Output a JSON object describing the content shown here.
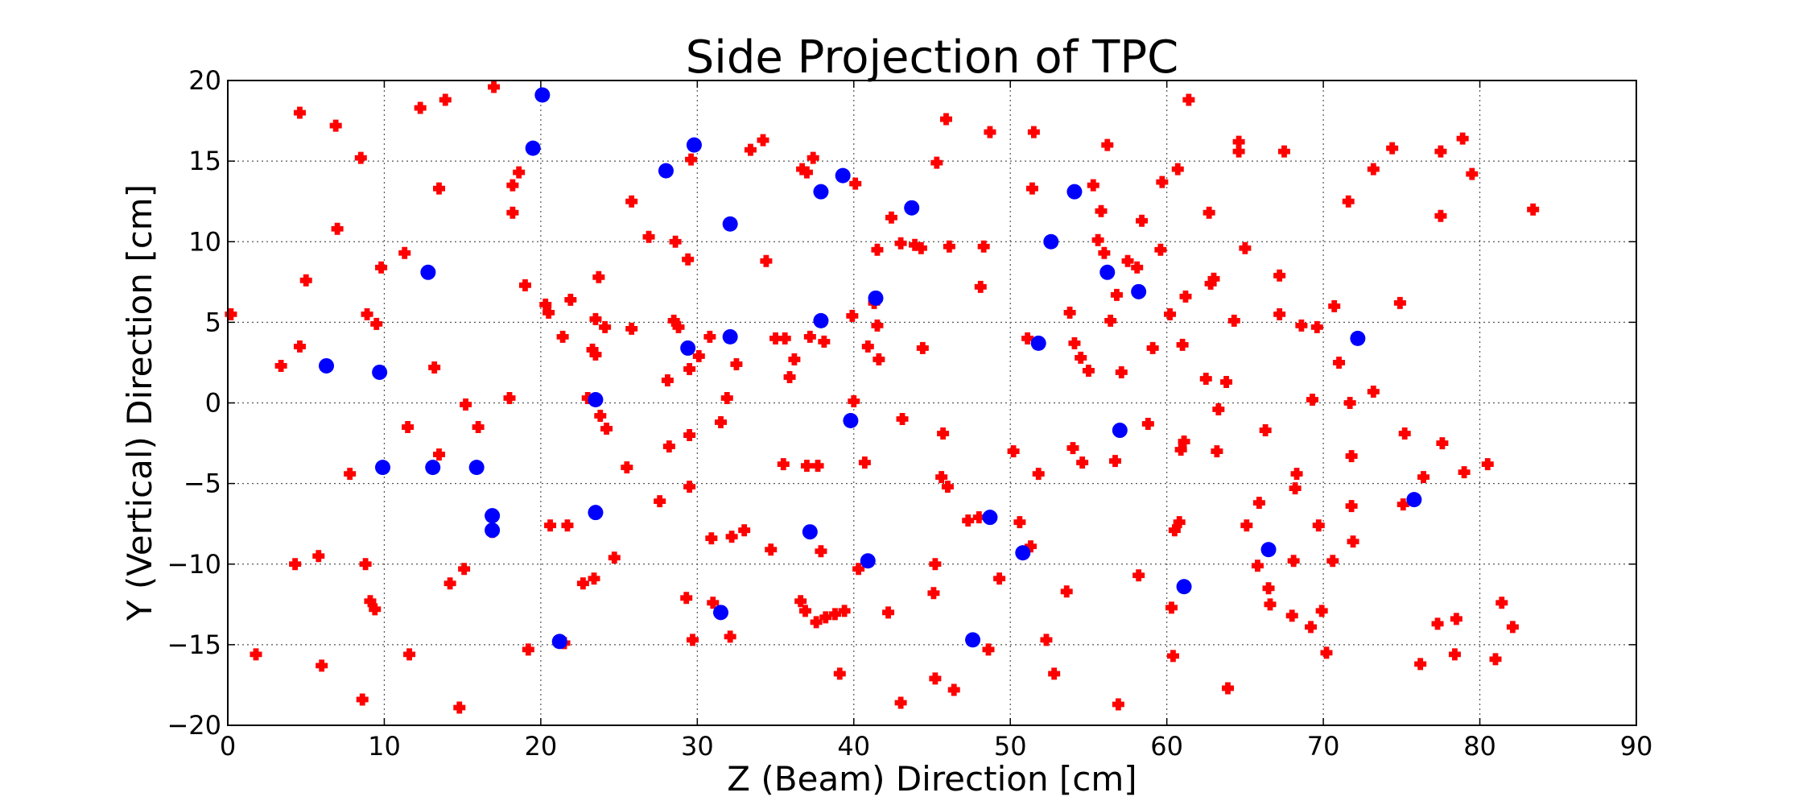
{
  "chart_data": {
    "type": "scatter",
    "title": "Side Projection of TPC",
    "xlabel": "Z (Beam) Direction [cm]",
    "ylabel": "Y (Vertical) Direction [cm]",
    "xlim": [
      0,
      90
    ],
    "ylim": [
      -20,
      20
    ],
    "xticks": [
      0,
      10,
      20,
      30,
      40,
      50,
      60,
      70,
      80,
      90
    ],
    "yticks": [
      -20,
      -15,
      -10,
      -5,
      0,
      5,
      10,
      15,
      20
    ],
    "xtick_labels": [
      "0",
      "10",
      "20",
      "30",
      "40",
      "50",
      "60",
      "70",
      "80",
      "90"
    ],
    "ytick_labels": [
      "−20",
      "−15",
      "−10",
      "−5",
      "0",
      "5",
      "10",
      "15",
      "20"
    ],
    "grid": true,
    "legend": false,
    "series": [
      {
        "marker": "plus",
        "color": "#ff0000",
        "points": [
          [
            0.2,
            5.5
          ],
          [
            1.8,
            -15.6
          ],
          [
            3.4,
            2.3
          ],
          [
            4.3,
            -10.0
          ],
          [
            4.6,
            18.0
          ],
          [
            4.6,
            3.5
          ],
          [
            5.0,
            7.6
          ],
          [
            5.8,
            -9.5
          ],
          [
            6.0,
            -16.3
          ],
          [
            6.9,
            17.2
          ],
          [
            7.0,
            10.8
          ],
          [
            7.8,
            -4.4
          ],
          [
            8.5,
            15.2
          ],
          [
            8.6,
            -18.4
          ],
          [
            8.8,
            -10.0
          ],
          [
            8.9,
            5.5
          ],
          [
            9.1,
            -12.3
          ],
          [
            9.4,
            -12.8
          ],
          [
            9.5,
            4.9
          ],
          [
            9.8,
            8.4
          ],
          [
            11.3,
            9.3
          ],
          [
            11.5,
            -1.5
          ],
          [
            11.6,
            -15.6
          ],
          [
            12.3,
            18.3
          ],
          [
            13.2,
            2.2
          ],
          [
            13.5,
            13.3
          ],
          [
            13.5,
            -3.2
          ],
          [
            13.9,
            18.8
          ],
          [
            14.2,
            -11.2
          ],
          [
            14.8,
            -18.9
          ],
          [
            15.1,
            -10.3
          ],
          [
            15.2,
            -0.1
          ],
          [
            16.0,
            -1.5
          ],
          [
            16.9,
            -8.0
          ],
          [
            17.0,
            19.6
          ],
          [
            18.0,
            0.3
          ],
          [
            18.2,
            13.5
          ],
          [
            18.2,
            11.8
          ],
          [
            18.6,
            14.3
          ],
          [
            19.0,
            7.3
          ],
          [
            19.2,
            -15.3
          ],
          [
            20.3,
            6.1
          ],
          [
            20.5,
            5.6
          ],
          [
            20.6,
            -7.6
          ],
          [
            21.4,
            4.1
          ],
          [
            21.5,
            -14.9
          ],
          [
            21.7,
            -7.6
          ],
          [
            21.9,
            6.4
          ],
          [
            22.7,
            -11.2
          ],
          [
            23.0,
            0.3
          ],
          [
            23.3,
            3.3
          ],
          [
            23.4,
            -10.9
          ],
          [
            23.5,
            5.2
          ],
          [
            23.5,
            3.0
          ],
          [
            23.7,
            7.8
          ],
          [
            23.8,
            -0.8
          ],
          [
            24.1,
            4.7
          ],
          [
            24.2,
            -1.6
          ],
          [
            24.7,
            -9.6
          ],
          [
            25.5,
            -4.0
          ],
          [
            25.8,
            12.5
          ],
          [
            25.8,
            4.6
          ],
          [
            26.9,
            10.3
          ],
          [
            27.6,
            -6.1
          ],
          [
            28.1,
            1.4
          ],
          [
            28.2,
            -2.7
          ],
          [
            28.5,
            5.1
          ],
          [
            28.6,
            10.0
          ],
          [
            28.8,
            4.7
          ],
          [
            29.3,
            -12.1
          ],
          [
            29.4,
            8.9
          ],
          [
            29.5,
            -2.0
          ],
          [
            29.5,
            -5.2
          ],
          [
            29.5,
            2.1
          ],
          [
            29.6,
            15.1
          ],
          [
            29.7,
            -14.7
          ],
          [
            30.1,
            2.9
          ],
          [
            30.8,
            4.1
          ],
          [
            30.9,
            -8.4
          ],
          [
            31.0,
            -12.4
          ],
          [
            31.5,
            -1.2
          ],
          [
            31.9,
            0.3
          ],
          [
            32.1,
            -14.5
          ],
          [
            32.2,
            -8.3
          ],
          [
            32.5,
            2.4
          ],
          [
            33.0,
            -7.9
          ],
          [
            33.4,
            15.7
          ],
          [
            34.2,
            16.3
          ],
          [
            34.4,
            8.8
          ],
          [
            34.7,
            -9.1
          ],
          [
            35.0,
            4.0
          ],
          [
            35.6,
            4.0
          ],
          [
            35.5,
            -3.8
          ],
          [
            35.9,
            1.6
          ],
          [
            36.2,
            2.7
          ],
          [
            36.6,
            -12.3
          ],
          [
            36.7,
            14.5
          ],
          [
            36.9,
            -12.9
          ],
          [
            37.0,
            14.3
          ],
          [
            37.0,
            -3.9
          ],
          [
            37.2,
            4.1
          ],
          [
            37.4,
            15.2
          ],
          [
            37.6,
            -13.6
          ],
          [
            37.7,
            -3.9
          ],
          [
            37.9,
            -9.2
          ],
          [
            38.1,
            3.8
          ],
          [
            38.2,
            -13.3
          ],
          [
            38.8,
            -13.1
          ],
          [
            39.1,
            -16.8
          ],
          [
            39.4,
            -12.9
          ],
          [
            39.9,
            5.4
          ],
          [
            40.0,
            0.1
          ],
          [
            40.1,
            13.6
          ],
          [
            40.3,
            -10.3
          ],
          [
            40.7,
            -3.7
          ],
          [
            40.9,
            3.5
          ],
          [
            41.3,
            6.2
          ],
          [
            41.5,
            4.8
          ],
          [
            41.5,
            9.5
          ],
          [
            41.6,
            2.7
          ],
          [
            42.2,
            -13.0
          ],
          [
            42.4,
            11.5
          ],
          [
            43.0,
            9.9
          ],
          [
            43.0,
            -18.6
          ],
          [
            43.1,
            -1.0
          ],
          [
            43.9,
            9.8
          ],
          [
            44.3,
            9.6
          ],
          [
            44.4,
            3.4
          ],
          [
            45.1,
            -11.8
          ],
          [
            45.2,
            -10.0
          ],
          [
            45.3,
            14.9
          ],
          [
            45.2,
            -17.1
          ],
          [
            45.6,
            -4.6
          ],
          [
            45.7,
            -1.9
          ],
          [
            45.9,
            17.6
          ],
          [
            46.0,
            -5.2
          ],
          [
            46.1,
            9.7
          ],
          [
            46.4,
            -17.8
          ],
          [
            47.3,
            -7.3
          ],
          [
            48.0,
            -7.1
          ],
          [
            48.1,
            7.2
          ],
          [
            48.3,
            9.7
          ],
          [
            48.6,
            -15.3
          ],
          [
            48.7,
            16.8
          ],
          [
            49.3,
            -10.9
          ],
          [
            50.2,
            -3.0
          ],
          [
            50.6,
            -7.4
          ],
          [
            51.1,
            4.0
          ],
          [
            51.3,
            -8.9
          ],
          [
            51.4,
            13.3
          ],
          [
            51.5,
            16.8
          ],
          [
            51.8,
            -4.4
          ],
          [
            52.3,
            -14.7
          ],
          [
            52.8,
            -16.8
          ],
          [
            53.6,
            -11.7
          ],
          [
            53.8,
            5.6
          ],
          [
            54.0,
            -2.8
          ],
          [
            54.1,
            3.7
          ],
          [
            54.5,
            2.8
          ],
          [
            54.6,
            -3.7
          ],
          [
            55.0,
            2.0
          ],
          [
            55.3,
            13.5
          ],
          [
            55.6,
            10.1
          ],
          [
            55.8,
            11.9
          ],
          [
            56.0,
            9.3
          ],
          [
            56.2,
            16.0
          ],
          [
            56.4,
            5.1
          ],
          [
            56.7,
            -3.6
          ],
          [
            56.8,
            6.7
          ],
          [
            56.9,
            -18.7
          ],
          [
            57.1,
            1.9
          ],
          [
            57.5,
            8.8
          ],
          [
            58.1,
            8.4
          ],
          [
            58.2,
            -10.7
          ],
          [
            58.4,
            11.3
          ],
          [
            58.8,
            -1.3
          ],
          [
            59.1,
            3.4
          ],
          [
            59.6,
            9.5
          ],
          [
            59.7,
            13.7
          ],
          [
            60.2,
            5.5
          ],
          [
            60.3,
            -12.7
          ],
          [
            60.4,
            -15.7
          ],
          [
            60.5,
            -7.9
          ],
          [
            60.7,
            14.5
          ],
          [
            60.8,
            -7.4
          ],
          [
            60.9,
            -2.9
          ],
          [
            61.0,
            3.6
          ],
          [
            61.1,
            -2.4
          ],
          [
            61.2,
            6.6
          ],
          [
            61.4,
            18.8
          ],
          [
            62.5,
            1.5
          ],
          [
            62.7,
            11.8
          ],
          [
            62.8,
            7.4
          ],
          [
            63.0,
            7.7
          ],
          [
            63.2,
            -3.0
          ],
          [
            63.3,
            -0.4
          ],
          [
            63.8,
            1.3
          ],
          [
            63.9,
            -17.7
          ],
          [
            64.3,
            5.1
          ],
          [
            64.6,
            16.2
          ],
          [
            64.6,
            15.6
          ],
          [
            65.0,
            9.6
          ],
          [
            65.1,
            -7.6
          ],
          [
            65.8,
            -10.1
          ],
          [
            65.9,
            -6.2
          ],
          [
            66.3,
            -1.7
          ],
          [
            66.5,
            -11.5
          ],
          [
            66.6,
            -12.5
          ],
          [
            67.2,
            7.9
          ],
          [
            67.2,
            5.5
          ],
          [
            67.5,
            15.6
          ],
          [
            68.0,
            -13.2
          ],
          [
            68.1,
            -9.8
          ],
          [
            68.2,
            -5.3
          ],
          [
            68.3,
            -4.4
          ],
          [
            68.6,
            4.8
          ],
          [
            69.2,
            -13.9
          ],
          [
            69.3,
            0.2
          ],
          [
            69.6,
            4.7
          ],
          [
            69.7,
            -7.6
          ],
          [
            69.9,
            -12.9
          ],
          [
            70.2,
            -15.5
          ],
          [
            70.6,
            -9.8
          ],
          [
            70.7,
            6.0
          ],
          [
            71.0,
            2.5
          ],
          [
            71.6,
            12.5
          ],
          [
            71.7,
            0.0
          ],
          [
            71.8,
            -6.4
          ],
          [
            71.8,
            -3.3
          ],
          [
            71.9,
            -8.6
          ],
          [
            73.2,
            0.7
          ],
          [
            73.2,
            14.5
          ],
          [
            74.4,
            15.8
          ],
          [
            74.9,
            6.2
          ],
          [
            75.1,
            -6.3
          ],
          [
            75.2,
            -1.9
          ],
          [
            76.2,
            -16.2
          ],
          [
            76.4,
            -4.6
          ],
          [
            77.3,
            -13.7
          ],
          [
            77.5,
            15.6
          ],
          [
            77.5,
            11.6
          ],
          [
            77.6,
            -2.5
          ],
          [
            78.4,
            -15.6
          ],
          [
            78.5,
            -13.4
          ],
          [
            78.9,
            16.4
          ],
          [
            79.0,
            -4.3
          ],
          [
            79.5,
            14.2
          ],
          [
            80.5,
            -3.8
          ],
          [
            81.0,
            -15.9
          ],
          [
            81.4,
            -12.4
          ],
          [
            82.1,
            -13.9
          ],
          [
            83.4,
            12.0
          ]
        ]
      },
      {
        "marker": "circle",
        "color": "#0000ff",
        "points": [
          [
            6.3,
            2.3
          ],
          [
            9.7,
            1.9
          ],
          [
            9.9,
            -4.0
          ],
          [
            12.8,
            8.1
          ],
          [
            13.1,
            -4.0
          ],
          [
            15.9,
            -4.0
          ],
          [
            16.9,
            -7.0
          ],
          [
            16.9,
            -7.9
          ],
          [
            19.5,
            15.8
          ],
          [
            20.1,
            19.1
          ],
          [
            21.2,
            -14.8
          ],
          [
            23.5,
            0.2
          ],
          [
            23.5,
            -6.8
          ],
          [
            28.0,
            14.4
          ],
          [
            29.4,
            3.4
          ],
          [
            29.8,
            16.0
          ],
          [
            31.5,
            -13.0
          ],
          [
            32.1,
            4.1
          ],
          [
            32.1,
            11.1
          ],
          [
            37.2,
            -8.0
          ],
          [
            37.9,
            13.1
          ],
          [
            37.9,
            5.1
          ],
          [
            39.3,
            14.1
          ],
          [
            39.8,
            -1.1
          ],
          [
            40.9,
            -9.8
          ],
          [
            41.4,
            6.5
          ],
          [
            43.7,
            12.1
          ],
          [
            47.6,
            -14.7
          ],
          [
            48.7,
            -7.1
          ],
          [
            50.8,
            -9.3
          ],
          [
            51.8,
            3.7
          ],
          [
            52.6,
            10.0
          ],
          [
            54.1,
            13.1
          ],
          [
            56.2,
            8.1
          ],
          [
            57.0,
            -1.7
          ],
          [
            58.2,
            6.9
          ],
          [
            61.1,
            -11.4
          ],
          [
            66.5,
            -9.1
          ],
          [
            72.2,
            4.0
          ],
          [
            75.8,
            -6.0
          ]
        ]
      }
    ]
  }
}
